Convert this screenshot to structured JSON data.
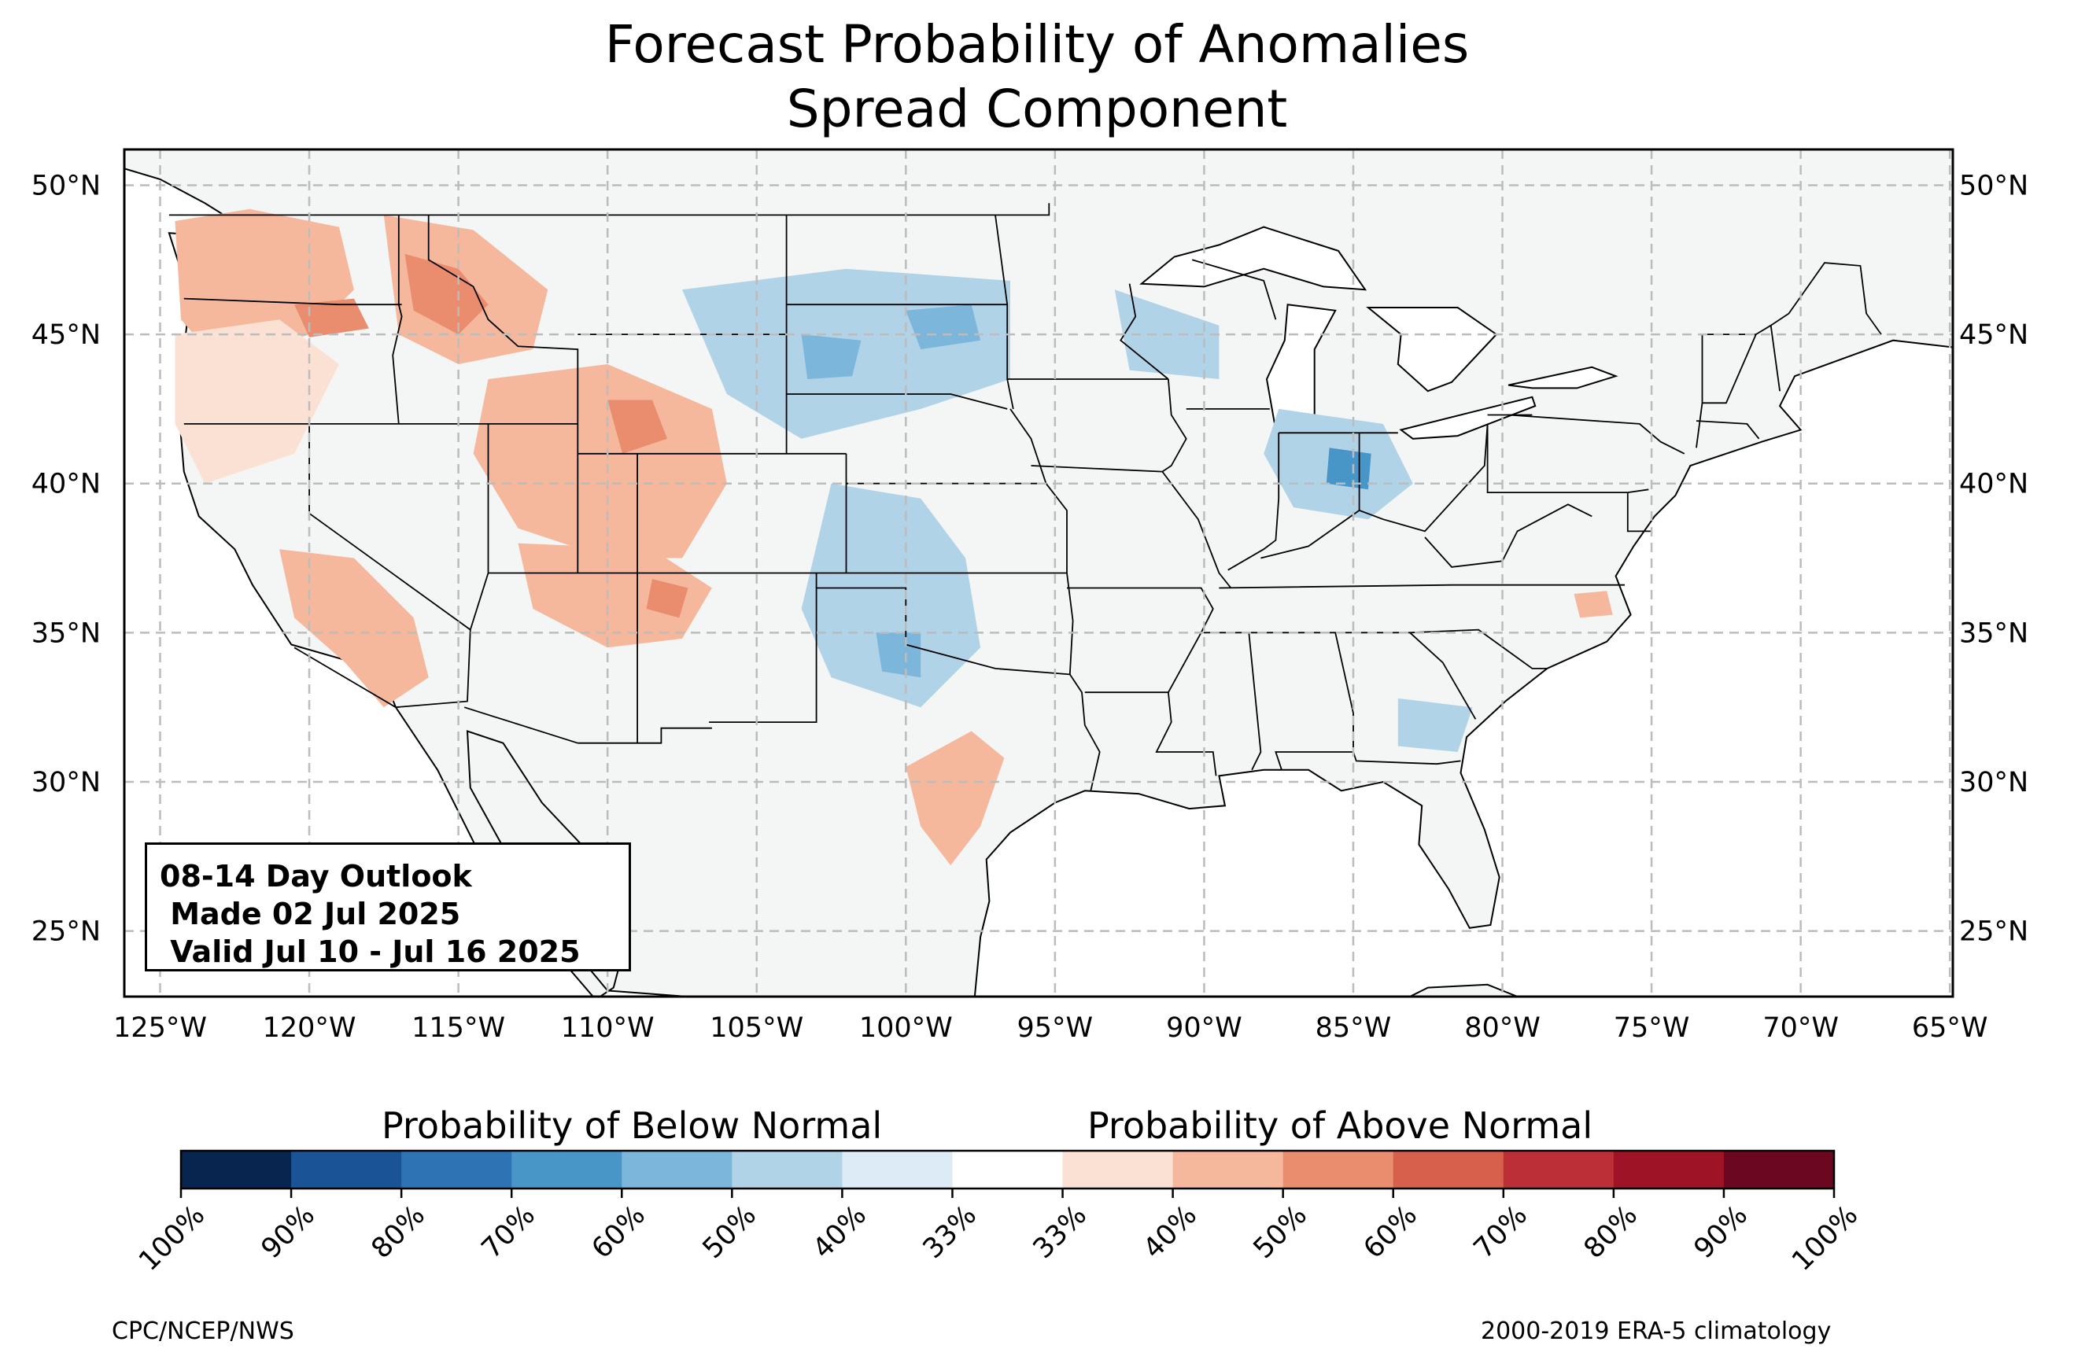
{
  "title": {
    "line1": "Forecast Probability of Anomalies",
    "line2": "Spread Component"
  },
  "info_box": {
    "line1": "08-14 Day Outlook",
    "line2": " Made 02 Jul 2025",
    "line3": " Valid Jul 10 - Jul 16 2025"
  },
  "axes": {
    "lat_labels": [
      "50°N",
      "45°N",
      "40°N",
      "35°N",
      "30°N",
      "25°N"
    ],
    "lat_values": [
      50,
      45,
      40,
      35,
      30,
      25
    ],
    "lon_labels": [
      "125°W",
      "120°W",
      "115°W",
      "110°W",
      "105°W",
      "100°W",
      "95°W",
      "90°W",
      "85°W",
      "80°W",
      "75°W",
      "70°W",
      "65°W"
    ],
    "lon_values": [
      -125,
      -120,
      -115,
      -110,
      -105,
      -100,
      -95,
      -90,
      -85,
      -80,
      -75,
      -70,
      -65
    ],
    "lon_range": [
      -126.2,
      -64.9
    ],
    "lat_range": [
      22.8,
      51.2
    ],
    "grid": "dashed"
  },
  "colorbar": {
    "below_label": "Probability of Below Normal",
    "above_label": "Probability of Above Normal",
    "ticks": [
      "100%",
      "90%",
      "80%",
      "70%",
      "60%",
      "50%",
      "40%",
      "33%",
      "33%",
      "40%",
      "50%",
      "60%",
      "70%",
      "80%",
      "90%",
      "100%"
    ],
    "colors": [
      "#08254f",
      "#1a5496",
      "#2e74b5",
      "#4895c8",
      "#7cb6da",
      "#b1d3e8",
      "#dcebf5",
      "#ffffff",
      "#fbe1d4",
      "#f5b89d",
      "#ea8c6e",
      "#d7604d",
      "#bc2f36",
      "#9e1426",
      "#6b0720"
    ]
  },
  "map_colors": {
    "land": "#f4f6f6",
    "ocean": "#ffffff",
    "border": "#000000",
    "county": "#8a8a8a"
  },
  "anomaly_regions": [
    {
      "name": "pacific-northwest",
      "category": "above",
      "level": 2,
      "points": [
        [
          -124.5,
          48.8
        ],
        [
          -122,
          49.2
        ],
        [
          -119,
          48.6
        ],
        [
          -118.5,
          46.5
        ],
        [
          -120,
          45
        ],
        [
          -123,
          44
        ],
        [
          -124.3,
          45.5
        ]
      ]
    },
    {
      "name": "oregon-coast",
      "category": "above",
      "level": 1,
      "points": [
        [
          -124.5,
          45
        ],
        [
          -121,
          45.5
        ],
        [
          -119,
          44
        ],
        [
          -120.5,
          41
        ],
        [
          -123.5,
          40
        ],
        [
          -124.5,
          42
        ]
      ]
    },
    {
      "name": "idaho-montana",
      "category": "above",
      "level": 2,
      "points": [
        [
          -117.5,
          49
        ],
        [
          -114.5,
          48.5
        ],
        [
          -112,
          46.5
        ],
        [
          -112.5,
          44.5
        ],
        [
          -115,
          44
        ],
        [
          -117,
          45
        ]
      ]
    },
    {
      "name": "idaho-core",
      "category": "above",
      "level": 3,
      "points": [
        [
          -116.8,
          47.7
        ],
        [
          -115,
          47.2
        ],
        [
          -114,
          46
        ],
        [
          -115,
          45
        ],
        [
          -116.5,
          45.8
        ]
      ]
    },
    {
      "name": "oregon-interior",
      "category": "above",
      "level": 3,
      "points": [
        [
          -120.5,
          46
        ],
        [
          -118.5,
          46.2
        ],
        [
          -118,
          45.2
        ],
        [
          -120,
          44.9
        ]
      ]
    },
    {
      "name": "utah-colorado",
      "category": "above",
      "level": 2,
      "points": [
        [
          -114,
          43.5
        ],
        [
          -110,
          44
        ],
        [
          -106.5,
          42.5
        ],
        [
          -106,
          40
        ],
        [
          -107.5,
          37.5
        ],
        [
          -110,
          37.5
        ],
        [
          -113,
          38.5
        ],
        [
          -114.5,
          41
        ]
      ]
    },
    {
      "name": "wyoming-core",
      "category": "above",
      "level": 3,
      "points": [
        [
          -110,
          42.8
        ],
        [
          -108.5,
          42.8
        ],
        [
          -108,
          41.5
        ],
        [
          -109.5,
          41
        ]
      ]
    },
    {
      "name": "four-corners",
      "category": "above",
      "level": 2,
      "points": [
        [
          -113,
          38
        ],
        [
          -108.5,
          37.8
        ],
        [
          -106.5,
          36.5
        ],
        [
          -107.5,
          34.8
        ],
        [
          -110,
          34.5
        ],
        [
          -112.5,
          35.8
        ]
      ]
    },
    {
      "name": "new-mexico-core",
      "category": "above",
      "level": 3,
      "points": [
        [
          -108.5,
          36.8
        ],
        [
          -107.3,
          36.5
        ],
        [
          -107.6,
          35.5
        ],
        [
          -108.7,
          35.8
        ]
      ]
    },
    {
      "name": "california-south",
      "category": "above",
      "level": 2,
      "points": [
        [
          -121,
          37.8
        ],
        [
          -118.5,
          37.5
        ],
        [
          -116.5,
          35.5
        ],
        [
          -116,
          33.5
        ],
        [
          -117.5,
          32.5
        ],
        [
          -118.8,
          34
        ],
        [
          -120.5,
          35.5
        ]
      ]
    },
    {
      "name": "texas-south",
      "category": "above",
      "level": 2,
      "points": [
        [
          -100,
          30.5
        ],
        [
          -97.8,
          31.7
        ],
        [
          -96.7,
          30.8
        ],
        [
          -97.5,
          28.5
        ],
        [
          -98.5,
          27.2
        ],
        [
          -99.5,
          28.5
        ]
      ]
    },
    {
      "name": "north-carolina",
      "category": "above",
      "level": 2,
      "points": [
        [
          -77.6,
          36.3
        ],
        [
          -76.5,
          36.4
        ],
        [
          -76.3,
          35.6
        ],
        [
          -77.4,
          35.5
        ]
      ]
    },
    {
      "name": "dakotas-nebraska",
      "category": "below",
      "level": 2,
      "points": [
        [
          -107.5,
          46.5
        ],
        [
          -102,
          47.2
        ],
        [
          -96.5,
          46.8
        ],
        [
          -96.5,
          43.5
        ],
        [
          -99.5,
          42.5
        ],
        [
          -103.5,
          41.5
        ],
        [
          -106,
          43
        ]
      ]
    },
    {
      "name": "dakotas-core",
      "category": "below",
      "level": 3,
      "points": [
        [
          -103.5,
          45
        ],
        [
          -101.5,
          44.8
        ],
        [
          -101.8,
          43.6
        ],
        [
          -103.3,
          43.5
        ]
      ]
    },
    {
      "name": "south-dakota-core",
      "category": "below",
      "level": 3,
      "points": [
        [
          -100,
          45.8
        ],
        [
          -97.8,
          46
        ],
        [
          -97.5,
          44.8
        ],
        [
          -99.5,
          44.5
        ]
      ]
    },
    {
      "name": "kansas-oklahoma",
      "category": "below",
      "level": 2,
      "points": [
        [
          -102.5,
          40
        ],
        [
          -99.5,
          39.5
        ],
        [
          -98,
          37.5
        ],
        [
          -97.5,
          34.5
        ],
        [
          -99.5,
          32.5
        ],
        [
          -102.5,
          33.5
        ],
        [
          -103.5,
          35.8
        ]
      ]
    },
    {
      "name": "oklahoma-core",
      "category": "below",
      "level": 3,
      "points": [
        [
          -101,
          35
        ],
        [
          -99.5,
          35
        ],
        [
          -99.5,
          33.5
        ],
        [
          -100.8,
          33.7
        ]
      ]
    },
    {
      "name": "wisconsin-iowa",
      "category": "below",
      "level": 2,
      "points": [
        [
          -93,
          46.5
        ],
        [
          -89.5,
          45.3
        ],
        [
          -89.5,
          43.5
        ],
        [
          -92.5,
          43.8
        ]
      ]
    },
    {
      "name": "indiana-ohio",
      "category": "below",
      "level": 2,
      "points": [
        [
          -87.5,
          42.5
        ],
        [
          -84,
          42
        ],
        [
          -83,
          40
        ],
        [
          -84.5,
          38.8
        ],
        [
          -87,
          39.2
        ],
        [
          -88,
          41
        ]
      ]
    },
    {
      "name": "indiana-core",
      "category": "below",
      "level": 4,
      "points": [
        [
          -85.8,
          41.2
        ],
        [
          -84.4,
          41
        ],
        [
          -84.5,
          39.8
        ],
        [
          -85.9,
          40
        ]
      ]
    },
    {
      "name": "georgia",
      "category": "below",
      "level": 2,
      "points": [
        [
          -83.5,
          32.8
        ],
        [
          -81,
          32.5
        ],
        [
          -81.5,
          31
        ],
        [
          -83.5,
          31.2
        ]
      ]
    }
  ]
}
